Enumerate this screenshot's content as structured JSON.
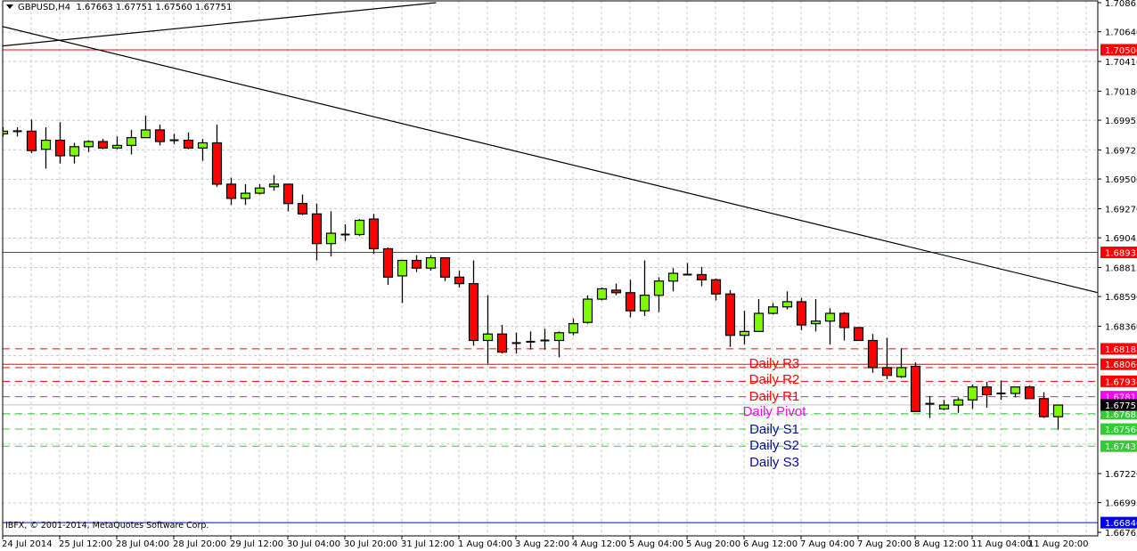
{
  "header": {
    "symbol": "GBPUSD,H4",
    "ohlc": "1.67663 1.67751 1.67560 1.67751"
  },
  "copyright": "IBFX, © 2001-2014, MetaQuotes Software Corp.",
  "colors": {
    "bull": "#7cfc00",
    "bear": "#ff0000",
    "outline": "#000000",
    "grid": "#c8c8c8",
    "resistance": "#ff0000",
    "pivot": "#ff00ff",
    "support": "#32cd32",
    "support_text": "#0a0a9a",
    "blue_level": "#0000ff"
  },
  "level_labels": [
    {
      "text": "Daily R3",
      "price": 1.6807,
      "color": "#ff0000"
    },
    {
      "text": "Daily R2",
      "price": 1.67945,
      "color": "#ff0000"
    },
    {
      "text": "Daily R1",
      "price": 1.6781,
      "color": "#ff0000"
    },
    {
      "text": "Daily Pivot",
      "price": 1.67695,
      "color": "#ff00ff"
    },
    {
      "text": "Daily S1",
      "price": 1.6756,
      "color": "#0a0a9a"
    },
    {
      "text": "Daily S2",
      "price": 1.67435,
      "color": "#0a0a9a"
    },
    {
      "text": "Daily S3",
      "price": 1.67305,
      "color": "#0a0a9a"
    }
  ],
  "chart_data": {
    "type": "candlestick",
    "symbol": "GBPUSD",
    "timeframe": "H4",
    "ylim": [
      1.66765,
      1.70865
    ],
    "y_ticks": [
      "1.70865",
      "1.70640",
      "1.70410",
      "1.70180",
      "1.69955",
      "1.69725",
      "1.69500",
      "1.69270",
      "1.69045",
      "1.68815",
      "1.68590",
      "1.68360",
      "1.67220",
      "1.66995",
      "1.66765"
    ],
    "x_tick_labels": [
      {
        "candle": 0,
        "label": "24 Jul 2014"
      },
      {
        "candle": 4,
        "label": "25 Jul 12:00"
      },
      {
        "candle": 8,
        "label": "28 Jul 04:00"
      },
      {
        "candle": 12,
        "label": "28 Jul 20:00"
      },
      {
        "candle": 16,
        "label": "29 Jul 12:00"
      },
      {
        "candle": 20,
        "label": "30 Jul 04:00"
      },
      {
        "candle": 24,
        "label": "30 Jul 20:00"
      },
      {
        "candle": 28,
        "label": "31 Jul 12:00"
      },
      {
        "candle": 32,
        "label": "1 Aug 04:00"
      },
      {
        "candle": 36,
        "label": "3 Aug 22:00"
      },
      {
        "candle": 40,
        "label": "4 Aug 12:00"
      },
      {
        "candle": 44,
        "label": "5 Aug 04:00"
      },
      {
        "candle": 48,
        "label": "5 Aug 20:00"
      },
      {
        "candle": 52,
        "label": "6 Aug 12:00"
      },
      {
        "candle": 56,
        "label": "7 Aug 04:00"
      },
      {
        "candle": 60,
        "label": "7 Aug 20:00"
      },
      {
        "candle": 64,
        "label": "8 Aug 12:00"
      },
      {
        "candle": 68,
        "label": "11 Aug 04:00"
      },
      {
        "candle": 72,
        "label": "11 Aug 20:00"
      }
    ],
    "candles_ohlc": [
      [
        1.6985,
        1.699,
        1.6983,
        1.6987
      ],
      [
        1.6987,
        1.699,
        1.6983,
        1.6987
      ],
      [
        1.6987,
        1.6996,
        1.697,
        1.6972
      ],
      [
        1.6973,
        1.699,
        1.6958,
        1.698
      ],
      [
        1.698,
        1.6994,
        1.6962,
        1.6968
      ],
      [
        1.6968,
        1.6978,
        1.6962,
        1.6975
      ],
      [
        1.6975,
        1.698,
        1.6971,
        1.6979
      ],
      [
        1.6979,
        1.6981,
        1.6973,
        1.6974
      ],
      [
        1.6974,
        1.6983,
        1.6973,
        1.6976
      ],
      [
        1.6976,
        1.6988,
        1.6969,
        1.6982
      ],
      [
        1.6982,
        1.6999,
        1.6982,
        1.6988
      ],
      [
        1.6988,
        1.6992,
        1.6976,
        1.6979
      ],
      [
        1.6979,
        1.6985,
        1.6977,
        1.698
      ],
      [
        1.698,
        1.6986,
        1.6973,
        1.6974
      ],
      [
        1.6974,
        1.6981,
        1.6964,
        1.6978
      ],
      [
        1.6978,
        1.6992,
        1.6944,
        1.6946
      ],
      [
        1.6946,
        1.6951,
        1.693,
        1.6935
      ],
      [
        1.6935,
        1.6946,
        1.693,
        1.6939
      ],
      [
        1.6939,
        1.6946,
        1.6938,
        1.6943
      ],
      [
        1.6944,
        1.6953,
        1.6941,
        1.6946
      ],
      [
        1.6946,
        1.6946,
        1.6925,
        1.6931
      ],
      [
        1.6931,
        1.6938,
        1.6922,
        1.6923
      ],
      [
        1.6923,
        1.6931,
        1.6887,
        1.69
      ],
      [
        1.69,
        1.6925,
        1.689,
        1.6908
      ],
      [
        1.6907,
        1.6915,
        1.6902,
        1.6907
      ],
      [
        1.6907,
        1.6919,
        1.6906,
        1.6918
      ],
      [
        1.6919,
        1.6923,
        1.6892,
        1.6896
      ],
      [
        1.6896,
        1.6897,
        1.6868,
        1.6874
      ],
      [
        1.6875,
        1.6887,
        1.6854,
        1.6887
      ],
      [
        1.6887,
        1.6891,
        1.6878,
        1.6881
      ],
      [
        1.6881,
        1.6891,
        1.6879,
        1.6889
      ],
      [
        1.6889,
        1.6889,
        1.6871,
        1.6874
      ],
      [
        1.6874,
        1.6879,
        1.6866,
        1.6869
      ],
      [
        1.6869,
        1.6887,
        1.6821,
        1.6825
      ],
      [
        1.6825,
        1.686,
        1.6807,
        1.683
      ],
      [
        1.683,
        1.6837,
        1.6815,
        1.6816
      ],
      [
        1.6823,
        1.6831,
        1.6815,
        1.6823
      ],
      [
        1.6824,
        1.6832,
        1.6818,
        1.6824
      ],
      [
        1.6825,
        1.6834,
        1.6818,
        1.6825
      ],
      [
        1.6825,
        1.6832,
        1.6812,
        1.6831
      ],
      [
        1.6831,
        1.6842,
        1.6829,
        1.6838
      ],
      [
        1.6839,
        1.686,
        1.6838,
        1.6857
      ],
      [
        1.6857,
        1.6866,
        1.6856,
        1.6865
      ],
      [
        1.6864,
        1.6869,
        1.686,
        1.6862
      ],
      [
        1.6862,
        1.6872,
        1.6843,
        1.6848
      ],
      [
        1.6848,
        1.6887,
        1.6844,
        1.686
      ],
      [
        1.686,
        1.6874,
        1.6847,
        1.6871
      ],
      [
        1.6871,
        1.6881,
        1.6863,
        1.6877
      ],
      [
        1.6876,
        1.6885,
        1.6876,
        1.6876
      ],
      [
        1.6876,
        1.6882,
        1.6867,
        1.6872
      ],
      [
        1.6872,
        1.6873,
        1.6856,
        1.6861
      ],
      [
        1.6861,
        1.6864,
        1.682,
        1.6829
      ],
      [
        1.6829,
        1.6848,
        1.6822,
        1.6832
      ],
      [
        1.6832,
        1.6857,
        1.6832,
        1.6846
      ],
      [
        1.6846,
        1.6854,
        1.6845,
        1.6851
      ],
      [
        1.6851,
        1.6863,
        1.6849,
        1.6855
      ],
      [
        1.6855,
        1.6858,
        1.6833,
        1.6837
      ],
      [
        1.6838,
        1.6857,
        1.6832,
        1.684
      ],
      [
        1.684,
        1.685,
        1.6822,
        1.6846
      ],
      [
        1.6846,
        1.6847,
        1.6825,
        1.6835
      ],
      [
        1.6835,
        1.6835,
        1.6825,
        1.6825
      ],
      [
        1.6825,
        1.683,
        1.68,
        1.6804
      ],
      [
        1.6804,
        1.6827,
        1.6795,
        1.6798
      ],
      [
        1.6797,
        1.6819,
        1.6796,
        1.6804
      ],
      [
        1.6805,
        1.6808,
        1.677,
        1.677
      ],
      [
        1.6776,
        1.6782,
        1.6765,
        1.6776
      ],
      [
        1.6772,
        1.6779,
        1.6771,
        1.6775
      ],
      [
        1.6775,
        1.6781,
        1.6769,
        1.6779
      ],
      [
        1.6779,
        1.6791,
        1.6772,
        1.6789
      ],
      [
        1.6789,
        1.6793,
        1.6773,
        1.6783
      ],
      [
        1.6784,
        1.6794,
        1.6779,
        1.6784
      ],
      [
        1.6784,
        1.6789,
        1.6781,
        1.6789
      ],
      [
        1.6789,
        1.679,
        1.678,
        1.678
      ],
      [
        1.678,
        1.6785,
        1.6765,
        1.6766
      ],
      [
        1.6766,
        1.6775,
        1.6756,
        1.6775
      ]
    ],
    "horizontal_levels": [
      {
        "price": 1.705,
        "label": "1.70500",
        "color": "#ff0000",
        "style": "solid"
      },
      {
        "price": 1.68932,
        "label": "1.68932",
        "color": "#ff0000",
        "style": "solid"
      },
      {
        "price": 1.68185,
        "label": "1.68185",
        "color": "#ff0000",
        "style": "dashed"
      },
      {
        "price": 1.68066,
        "label": "1.68066",
        "color": "#ff0000",
        "style": "solid"
      },
      {
        "price": 1.6804,
        "label": "",
        "color": "#ff0000",
        "style": "dashed"
      },
      {
        "price": 1.67934,
        "label": "1.67934",
        "color": "#ff0000",
        "style": "dashed"
      },
      {
        "price": 1.67815,
        "label": "1.67815",
        "color": "#ff00ff",
        "style": "dashed"
      },
      {
        "price": 1.67683,
        "label": "1.67683",
        "color": "#32cd32",
        "style": "dashed"
      },
      {
        "price": 1.67564,
        "label": "1.67564",
        "color": "#32cd32",
        "style": "dashed"
      },
      {
        "price": 1.67432,
        "label": "1.67432",
        "color": "#32cd32",
        "style": "dashed"
      },
      {
        "price": 1.6684,
        "label": "1.66840",
        "color": "#0000ff",
        "style": "solid"
      }
    ],
    "current_price": {
      "price": 1.67751,
      "label": "1.67751"
    },
    "trendlines": [
      {
        "from": {
          "candle": 0,
          "price": 1.7053
        },
        "to": {
          "candle": 30.4,
          "price": 1.70865
        }
      },
      {
        "from": {
          "candle": 0,
          "price": 1.7068
        },
        "to": {
          "candle": 78.7,
          "price": 1.6857
        }
      }
    ]
  }
}
